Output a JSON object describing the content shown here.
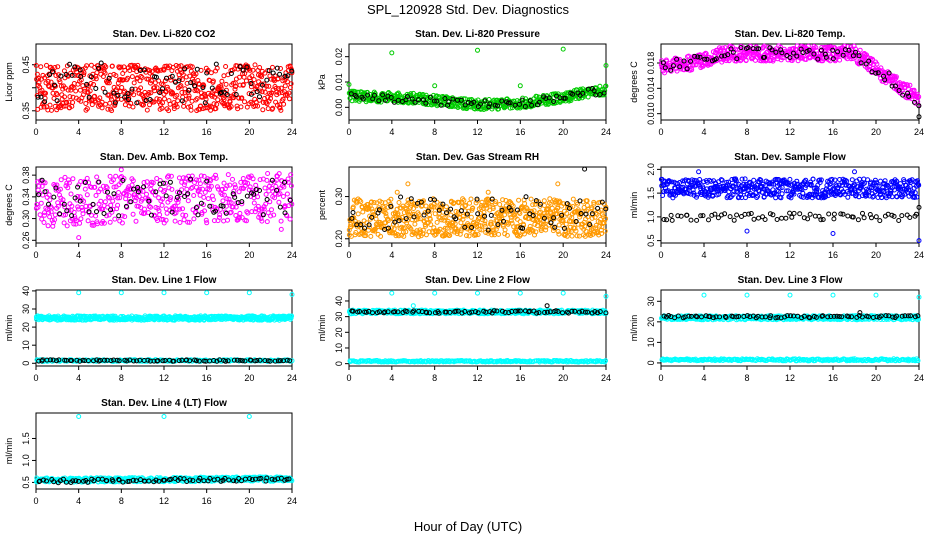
{
  "figure": {
    "title": "SPL_120928  Std. Dev. Diagnostics",
    "xlabel": "Hour of Day (UTC)"
  },
  "chart_data": [
    {
      "type": "scatter",
      "title": "Stan. Dev. Li-820 CO2",
      "ylabel": "Licor ppm",
      "xlim": [
        0,
        24
      ],
      "ylim": [
        0.33,
        0.495
      ],
      "xticks": [
        0,
        4,
        8,
        12,
        16,
        20,
        24
      ],
      "yticks": [
        0.35,
        0.4,
        0.45
      ],
      "ytick_labels": [
        "0.35",
        "",
        "0.45"
      ],
      "series": [
        {
          "color": "#ff0000",
          "pattern": "band",
          "center": [
            [
              0,
              0.4
            ],
            [
              24,
              0.4
            ]
          ],
          "spread": 0.05,
          "count": 620,
          "outliers": []
        },
        {
          "color": "#000000",
          "pattern": "band",
          "center": [
            [
              0,
              0.41
            ],
            [
              24,
              0.41
            ]
          ],
          "spread": 0.045,
          "count": 75,
          "outliers": []
        }
      ]
    },
    {
      "type": "scatter",
      "title": "Stan. Dev. Li-820 Pressure",
      "ylabel": "kPa",
      "xlim": [
        0,
        24
      ],
      "ylim": [
        -0.005,
        0.025
      ],
      "xticks": [
        0,
        4,
        8,
        12,
        16,
        20,
        24
      ],
      "yticks": [
        0.0,
        0.01,
        0.02
      ],
      "ytick_labels": [
        "0.00",
        "0.01",
        "0.02"
      ],
      "series": [
        {
          "color": "#00cc00",
          "pattern": "band",
          "center": [
            [
              0,
              0.0045
            ],
            [
              6,
              0.0035
            ],
            [
              12,
              0.001
            ],
            [
              16,
              0.0015
            ],
            [
              20,
              0.004
            ],
            [
              24,
              0.007
            ]
          ],
          "spread": 0.002,
          "count": 520,
          "outliers": [
            [
              0,
              0.009
            ],
            [
              4,
              0.0215
            ],
            [
              8,
              0.0085
            ],
            [
              12,
              0.0225
            ],
            [
              16,
              0.0085
            ],
            [
              20,
              0.023
            ],
            [
              24,
              0.0165
            ]
          ]
        },
        {
          "color": "#000000",
          "pattern": "band",
          "center": [
            [
              0,
              0.004
            ],
            [
              6,
              0.003
            ],
            [
              12,
              0.001
            ],
            [
              16,
              0.0015
            ],
            [
              20,
              0.004
            ],
            [
              24,
              0.007
            ]
          ],
          "spread": 0.0015,
          "count": 75,
          "outliers": []
        }
      ]
    },
    {
      "type": "scatter",
      "title": "Stan. Dev. Li-820 Temp.",
      "ylabel": "degrees C",
      "xlim": [
        0,
        24
      ],
      "ylim": [
        0.009,
        0.021
      ],
      "xticks": [
        0,
        4,
        8,
        12,
        16,
        20,
        24
      ],
      "yticks": [
        0.01,
        0.014,
        0.018
      ],
      "ytick_labels": [
        "0.010",
        "0.014",
        "0.018"
      ],
      "series": [
        {
          "color": "#ff00ff",
          "pattern": "band",
          "center": [
            [
              0,
              0.0175
            ],
            [
              3,
              0.018
            ],
            [
              6,
              0.0195
            ],
            [
              12,
              0.0195
            ],
            [
              18,
              0.0195
            ],
            [
              20,
              0.017
            ],
            [
              22,
              0.0145
            ],
            [
              24,
              0.0125
            ]
          ],
          "spread": 0.0012,
          "count": 560,
          "outliers": []
        },
        {
          "color": "#000000",
          "pattern": "band",
          "center": [
            [
              0,
              0.0175
            ],
            [
              3,
              0.018
            ],
            [
              6,
              0.0195
            ],
            [
              12,
              0.0195
            ],
            [
              18,
              0.0195
            ],
            [
              20,
              0.017
            ],
            [
              22,
              0.0145
            ],
            [
              24,
              0.0115
            ]
          ],
          "spread": 0.001,
          "count": 75,
          "outliers": [
            [
              24,
              0.0095
            ]
          ]
        }
      ]
    },
    {
      "type": "scatter",
      "title": "Stan. Dev. Amb. Box Temp.",
      "ylabel": "degrees C",
      "xlim": [
        0,
        24
      ],
      "ylim": [
        0.255,
        0.395
      ],
      "xticks": [
        0,
        4,
        8,
        12,
        16,
        20,
        24
      ],
      "yticks": [
        0.26,
        0.3,
        0.34,
        0.38
      ],
      "ytick_labels": [
        "0.26",
        "0.30",
        "0.34",
        "0.38"
      ],
      "series": [
        {
          "color": "#ff00ff",
          "pattern": "band",
          "center": [
            [
              0,
              0.33
            ],
            [
              24,
              0.34
            ]
          ],
          "spread": 0.045,
          "count": 480,
          "outliers": [
            [
              4,
              0.265
            ],
            [
              8,
              0.39
            ],
            [
              23,
              0.28
            ]
          ]
        },
        {
          "color": "#000000",
          "pattern": "band",
          "center": [
            [
              0,
              0.34
            ],
            [
              24,
              0.34
            ]
          ],
          "spread": 0.035,
          "count": 70,
          "outliers": []
        }
      ]
    },
    {
      "type": "scatter",
      "title": "Stan. Dev. Gas Stream RH",
      "ylabel": "percent",
      "xlim": [
        0,
        24
      ],
      "ylim": [
        0.19,
        0.37
      ],
      "xticks": [
        0,
        4,
        8,
        12,
        16,
        20,
        24
      ],
      "yticks": [
        0.2,
        0.3
      ],
      "ytick_labels": [
        "0.20",
        "0.30"
      ],
      "series": [
        {
          "color": "#ff9900",
          "pattern": "band",
          "center": [
            [
              0,
              0.25
            ],
            [
              24,
              0.25
            ]
          ],
          "spread": 0.045,
          "count": 700,
          "outliers": [
            [
              4.5,
              0.31
            ],
            [
              5.5,
              0.33
            ],
            [
              13,
              0.31
            ],
            [
              19.5,
              0.33
            ]
          ]
        },
        {
          "color": "#000000",
          "pattern": "band",
          "center": [
            [
              0,
              0.26
            ],
            [
              24,
              0.26
            ]
          ],
          "spread": 0.04,
          "count": 70,
          "outliers": [
            [
              22,
              0.365
            ]
          ]
        }
      ]
    },
    {
      "type": "scatter",
      "title": "Stan. Dev. Sample Flow",
      "ylabel": "ml/min",
      "xlim": [
        0,
        24
      ],
      "ylim": [
        0.45,
        2.05
      ],
      "xticks": [
        0,
        4,
        8,
        12,
        16,
        20,
        24
      ],
      "yticks": [
        0.5,
        1.0,
        1.5,
        2.0
      ],
      "ytick_labels": [
        "0.5",
        "1.0",
        "1.5",
        "2.0"
      ],
      "series": [
        {
          "color": "#0000ff",
          "pattern": "band",
          "center": [
            [
              0,
              1.6
            ],
            [
              24,
              1.6
            ]
          ],
          "spread": 0.2,
          "count": 560,
          "outliers": [
            [
              8,
              0.7
            ],
            [
              16,
              0.65
            ],
            [
              24,
              0.5
            ],
            [
              3.5,
              1.95
            ],
            [
              18,
              1.95
            ]
          ]
        },
        {
          "color": "#000000",
          "pattern": "band",
          "center": [
            [
              0,
              1.0
            ],
            [
              24,
              1.0
            ]
          ],
          "spread": 0.08,
          "count": 70,
          "outliers": [
            [
              24,
              1.2
            ]
          ]
        }
      ]
    },
    {
      "type": "scatter",
      "title": "Stan. Dev. Line 1 Flow",
      "ylabel": "ml/min",
      "xlim": [
        0,
        24
      ],
      "ylim": [
        -1.5,
        40.5
      ],
      "xticks": [
        0,
        4,
        8,
        12,
        16,
        20,
        24
      ],
      "yticks": [
        0,
        10,
        20,
        30,
        40
      ],
      "ytick_labels": [
        "0",
        "10",
        "20",
        "30",
        "40"
      ],
      "series": [
        {
          "color": "#00ffff",
          "pattern": "band",
          "center": [
            [
              0,
              25
            ],
            [
              24,
              25
            ]
          ],
          "spread": 1.2,
          "count": 520,
          "outliers": [
            [
              4,
              39
            ],
            [
              8,
              39
            ],
            [
              12,
              39
            ],
            [
              16,
              39
            ],
            [
              20,
              39
            ],
            [
              24,
              38
            ]
          ]
        },
        {
          "color": "#00ffff",
          "pattern": "band",
          "center": [
            [
              0,
              1.5
            ],
            [
              24,
              1.5
            ]
          ],
          "spread": 0.5,
          "count": 220,
          "outliers": []
        },
        {
          "color": "#000000",
          "pattern": "band",
          "center": [
            [
              0,
              1.5
            ],
            [
              24,
              1.5
            ]
          ],
          "spread": 0.4,
          "count": 80,
          "outliers": []
        }
      ]
    },
    {
      "type": "scatter",
      "title": "Stan. Dev. Line 2 Flow",
      "ylabel": "ml/min",
      "xlim": [
        0,
        24
      ],
      "ylim": [
        -1.5,
        47
      ],
      "xticks": [
        0,
        4,
        8,
        12,
        16,
        20,
        24
      ],
      "yticks": [
        0,
        10,
        20,
        30,
        40
      ],
      "ytick_labels": [
        "0",
        "10",
        "20",
        "30",
        "40"
      ],
      "series": [
        {
          "color": "#00ffff",
          "pattern": "band",
          "center": [
            [
              0,
              33
            ],
            [
              24,
              33
            ]
          ],
          "spread": 1.2,
          "count": 460,
          "outliers": [
            [
              4,
              45
            ],
            [
              6,
              37
            ],
            [
              8,
              45
            ],
            [
              12,
              45
            ],
            [
              16,
              45
            ],
            [
              20,
              45
            ],
            [
              24,
              43
            ]
          ]
        },
        {
          "color": "#00ffff",
          "pattern": "band",
          "center": [
            [
              0,
              1.5
            ],
            [
              24,
              1.5
            ]
          ],
          "spread": 0.5,
          "count": 240,
          "outliers": []
        },
        {
          "color": "#000000",
          "pattern": "band",
          "center": [
            [
              0,
              33
            ],
            [
              24,
              33
            ]
          ],
          "spread": 0.8,
          "count": 80,
          "outliers": [
            [
              18.5,
              37
            ]
          ]
        }
      ]
    },
    {
      "type": "scatter",
      "title": "Stan. Dev. Line 3 Flow",
      "ylabel": "ml/min",
      "xlim": [
        0,
        24
      ],
      "ylim": [
        -1.5,
        35.5
      ],
      "xticks": [
        0,
        4,
        8,
        12,
        16,
        20,
        24
      ],
      "yticks": [
        0,
        10,
        20,
        30
      ],
      "ytick_labels": [
        "0",
        "10",
        "20",
        "30"
      ],
      "series": [
        {
          "color": "#00ffff",
          "pattern": "band",
          "center": [
            [
              0,
              22
            ],
            [
              24,
              22
            ]
          ],
          "spread": 1.0,
          "count": 460,
          "outliers": [
            [
              4,
              33
            ],
            [
              8,
              33
            ],
            [
              12,
              33
            ],
            [
              16,
              33
            ],
            [
              20,
              33
            ],
            [
              24,
              32
            ]
          ]
        },
        {
          "color": "#00ffff",
          "pattern": "band",
          "center": [
            [
              0,
              1.5
            ],
            [
              24,
              1.5
            ]
          ],
          "spread": 0.5,
          "count": 240,
          "outliers": []
        },
        {
          "color": "#000000",
          "pattern": "band",
          "center": [
            [
              0,
              22.5
            ],
            [
              24,
              22.5
            ]
          ],
          "spread": 0.6,
          "count": 80,
          "outliers": [
            [
              18.5,
              24.5
            ]
          ]
        }
      ]
    },
    {
      "type": "scatter",
      "title": "Stan. Dev. Line 4 (LT) Flow",
      "ylabel": "ml/min",
      "xlim": [
        0,
        24
      ],
      "ylim": [
        0.35,
        2.08
      ],
      "xticks": [
        0,
        4,
        8,
        12,
        16,
        20,
        24
      ],
      "yticks": [
        0.5,
        1.0,
        1.5
      ],
      "ytick_labels": [
        "0.5",
        "1.0",
        "1.5"
      ],
      "series": [
        {
          "color": "#00ffff",
          "pattern": "band",
          "center": [
            [
              0,
              0.55
            ],
            [
              24,
              0.58
            ]
          ],
          "spread": 0.05,
          "count": 460,
          "outliers": [
            [
              4,
              2.0
            ],
            [
              12,
              2.0
            ],
            [
              20,
              2.0
            ]
          ]
        },
        {
          "color": "#000000",
          "pattern": "band",
          "center": [
            [
              0,
              0.53
            ],
            [
              24,
              0.57
            ]
          ],
          "spread": 0.04,
          "count": 80,
          "outliers": []
        }
      ]
    }
  ]
}
